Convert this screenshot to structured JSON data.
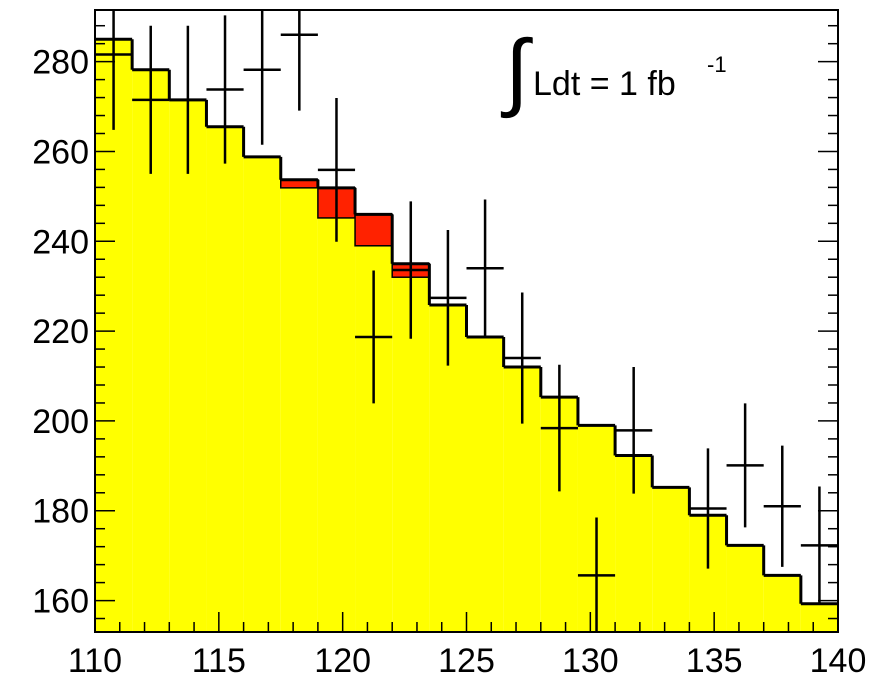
{
  "chart_data": {
    "type": "histogram",
    "bins": [
      110,
      111.5,
      113,
      114.5,
      116,
      117.5,
      119,
      120.5,
      122,
      123.5,
      125,
      126.5,
      128,
      129.5,
      131,
      132.5,
      134,
      135.5,
      137,
      138.5,
      140
    ],
    "background": {
      "color": "#ffff00",
      "values": [
        285,
        278.2,
        271.5,
        265.5,
        258.8,
        251.9,
        245.2,
        239,
        232,
        225.8,
        218.7,
        212,
        205.3,
        199,
        192.3,
        185.2,
        179,
        172.3,
        165.6,
        159.3
      ]
    },
    "signal": {
      "color": "#ff2200",
      "values": [
        0,
        0,
        0,
        0,
        0,
        1.8,
        6.7,
        7,
        3,
        0,
        0,
        0,
        0,
        0,
        0,
        0,
        0,
        0,
        0,
        0
      ]
    },
    "points": {
      "color": "#000000",
      "values": [
        281.6,
        271.5,
        271.5,
        273.8,
        278.2,
        286,
        255.9,
        218.7,
        233.6,
        227.4,
        234,
        214,
        198.4,
        165.6,
        197.9,
        null,
        180.5,
        190.1,
        181,
        172.3
      ],
      "errors": [
        16.8,
        16.5,
        16.5,
        16.5,
        16.7,
        16.9,
        16,
        14.8,
        15.3,
        15.1,
        15.3,
        14.6,
        14.1,
        12.9,
        14.1,
        null,
        13.4,
        13.8,
        13.5,
        13.1
      ]
    },
    "xlim": [
      110,
      140
    ],
    "xticks": [
      110,
      115,
      120,
      125,
      130,
      135,
      140
    ],
    "xminorticks": [
      111,
      112,
      113,
      114,
      116,
      117,
      118,
      119,
      121,
      122,
      123,
      124,
      126,
      127,
      128,
      129,
      131,
      132,
      133,
      134,
      136,
      137,
      138,
      139
    ],
    "ylim": [
      153,
      291.5
    ],
    "yticks": [
      160,
      180,
      200,
      220,
      240,
      260,
      280
    ],
    "yminorticks": [
      156,
      164,
      168,
      172,
      176,
      184,
      188,
      192,
      196,
      204,
      208,
      212,
      216,
      224,
      228,
      232,
      236,
      244,
      248,
      252,
      256,
      264,
      268,
      272,
      276,
      284,
      288
    ],
    "annotation": {
      "symbol": "∫",
      "text": "Ldt = 1 fb",
      "superscript": "-1"
    }
  }
}
